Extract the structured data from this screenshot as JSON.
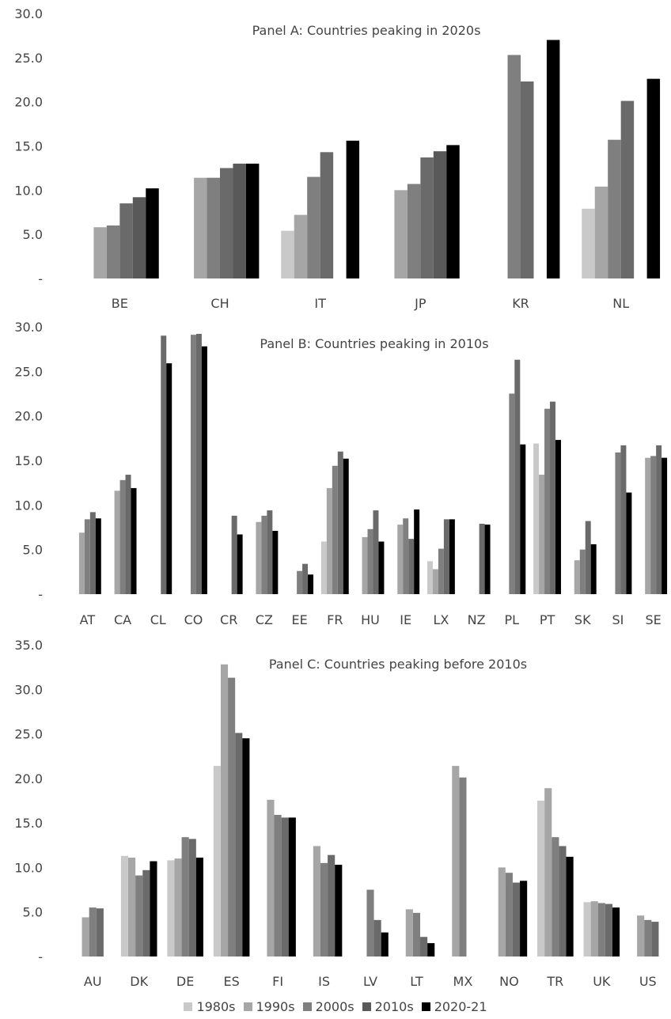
{
  "chart_data": [
    {
      "type": "bar",
      "title": "Panel A: Countries peaking in 2020s",
      "categories": [
        "BE",
        "CH",
        "IT",
        "JP",
        "KR",
        "NL"
      ],
      "yticks": [
        "-",
        "5.0",
        "10.0",
        "15.0",
        "20.0",
        "25.0",
        "30.0"
      ],
      "ylim": [
        0,
        30
      ],
      "series": [
        {
          "name": "1980s",
          "values": [
            null,
            null,
            5.4,
            null,
            null,
            7.9
          ]
        },
        {
          "name": "1990s",
          "values": [
            5.8,
            11.4,
            7.2,
            10.0,
            null,
            10.4
          ]
        },
        {
          "name": "2000s",
          "values": [
            6.0,
            11.4,
            11.5,
            10.7,
            25.3,
            15.7
          ]
        },
        {
          "name": "2010s",
          "values": [
            8.5,
            12.5,
            14.3,
            13.7,
            22.3,
            20.1
          ]
        },
        {
          "name": "2010s_b",
          "values": [
            9.2,
            13.0,
            null,
            14.4,
            null,
            null
          ]
        },
        {
          "name": "2020-21",
          "values": [
            10.2,
            13.0,
            15.6,
            15.1,
            27.0,
            22.6
          ]
        }
      ]
    },
    {
      "type": "bar",
      "title": "Panel B: Countries peaking in 2010s",
      "categories": [
        "AT",
        "CA",
        "CL",
        "CO",
        "CR",
        "CZ",
        "EE",
        "FR",
        "HU",
        "IE",
        "LX",
        "NZ",
        "PL",
        "PT",
        "SK",
        "SI",
        "SE"
      ],
      "yticks": [
        "-",
        "5.0",
        "10.0",
        "15.0",
        "20.0",
        "25.0",
        "30.0"
      ],
      "ylim": [
        0,
        30
      ],
      "series": [
        {
          "name": "1980s",
          "values": [
            null,
            null,
            null,
            null,
            null,
            null,
            null,
            5.9,
            null,
            null,
            3.7,
            null,
            null,
            16.9,
            null,
            null,
            null
          ]
        },
        {
          "name": "1990s",
          "values": [
            6.9,
            11.6,
            null,
            null,
            null,
            8.1,
            null,
            11.9,
            6.4,
            7.8,
            2.8,
            null,
            null,
            13.4,
            3.8,
            null,
            15.3
          ]
        },
        {
          "name": "2000s",
          "values": [
            8.4,
            12.8,
            null,
            29.1,
            null,
            8.8,
            2.6,
            14.4,
            7.3,
            8.5,
            5.1,
            null,
            22.5,
            20.8,
            5.0,
            15.9,
            15.5
          ]
        },
        {
          "name": "2010s",
          "values": [
            9.2,
            13.4,
            29.0,
            29.2,
            8.8,
            9.4,
            3.4,
            16.0,
            9.4,
            6.2,
            8.4,
            7.9,
            26.3,
            21.6,
            8.2,
            16.7,
            16.7
          ]
        },
        {
          "name": "2020-21",
          "values": [
            8.5,
            11.9,
            25.9,
            27.8,
            6.7,
            7.1,
            2.2,
            15.2,
            5.9,
            9.5,
            8.4,
            7.8,
            16.8,
            17.3,
            5.6,
            11.4,
            15.3
          ]
        }
      ]
    },
    {
      "type": "bar",
      "title": "Panel C: Countries peaking before 2010s",
      "categories": [
        "AU",
        "DK",
        "DE",
        "ES",
        "FI",
        "IS",
        "LV",
        "LT",
        "MX",
        "NO",
        "TR",
        "UK",
        "US"
      ],
      "yticks": [
        "-",
        "5.0",
        "10.0",
        "15.0",
        "20.0",
        "25.0",
        "30.0",
        "35.0"
      ],
      "ylim": [
        0,
        35
      ],
      "series": [
        {
          "name": "1980s",
          "values": [
            null,
            11.3,
            10.8,
            21.4,
            null,
            null,
            null,
            null,
            null,
            null,
            17.5,
            6.1,
            null
          ]
        },
        {
          "name": "1990s",
          "values": [
            4.4,
            11.1,
            11.0,
            32.8,
            17.6,
            12.4,
            null,
            5.3,
            21.4,
            10.0,
            18.9,
            6.2,
            4.6
          ]
        },
        {
          "name": "2000s",
          "values": [
            5.5,
            9.1,
            13.4,
            31.3,
            15.9,
            10.5,
            7.5,
            4.9,
            20.1,
            9.4,
            13.4,
            6.0,
            4.1
          ]
        },
        {
          "name": "2010s",
          "values": [
            5.4,
            9.7,
            13.2,
            25.1,
            15.6,
            11.4,
            4.1,
            2.2,
            null,
            8.3,
            12.4,
            5.9,
            3.9
          ]
        },
        {
          "name": "2020-21",
          "values": [
            null,
            10.7,
            11.1,
            24.5,
            15.6,
            10.3,
            2.7,
            1.5,
            null,
            8.5,
            11.2,
            5.5,
            null
          ]
        }
      ]
    }
  ],
  "legend": {
    "items": [
      {
        "label": "1980s",
        "color": "#c9c9c9"
      },
      {
        "label": "1990s",
        "color": "#a6a6a6"
      },
      {
        "label": "2000s",
        "color": "#7f7f7f"
      },
      {
        "label": "2010s",
        "color": "#595959"
      },
      {
        "label": "2020-21",
        "color": "#000000"
      }
    ]
  },
  "colors": [
    "#c9c9c9",
    "#a6a6a6",
    "#7f7f7f",
    "#6a6a6a",
    "#595959",
    "#000000"
  ]
}
